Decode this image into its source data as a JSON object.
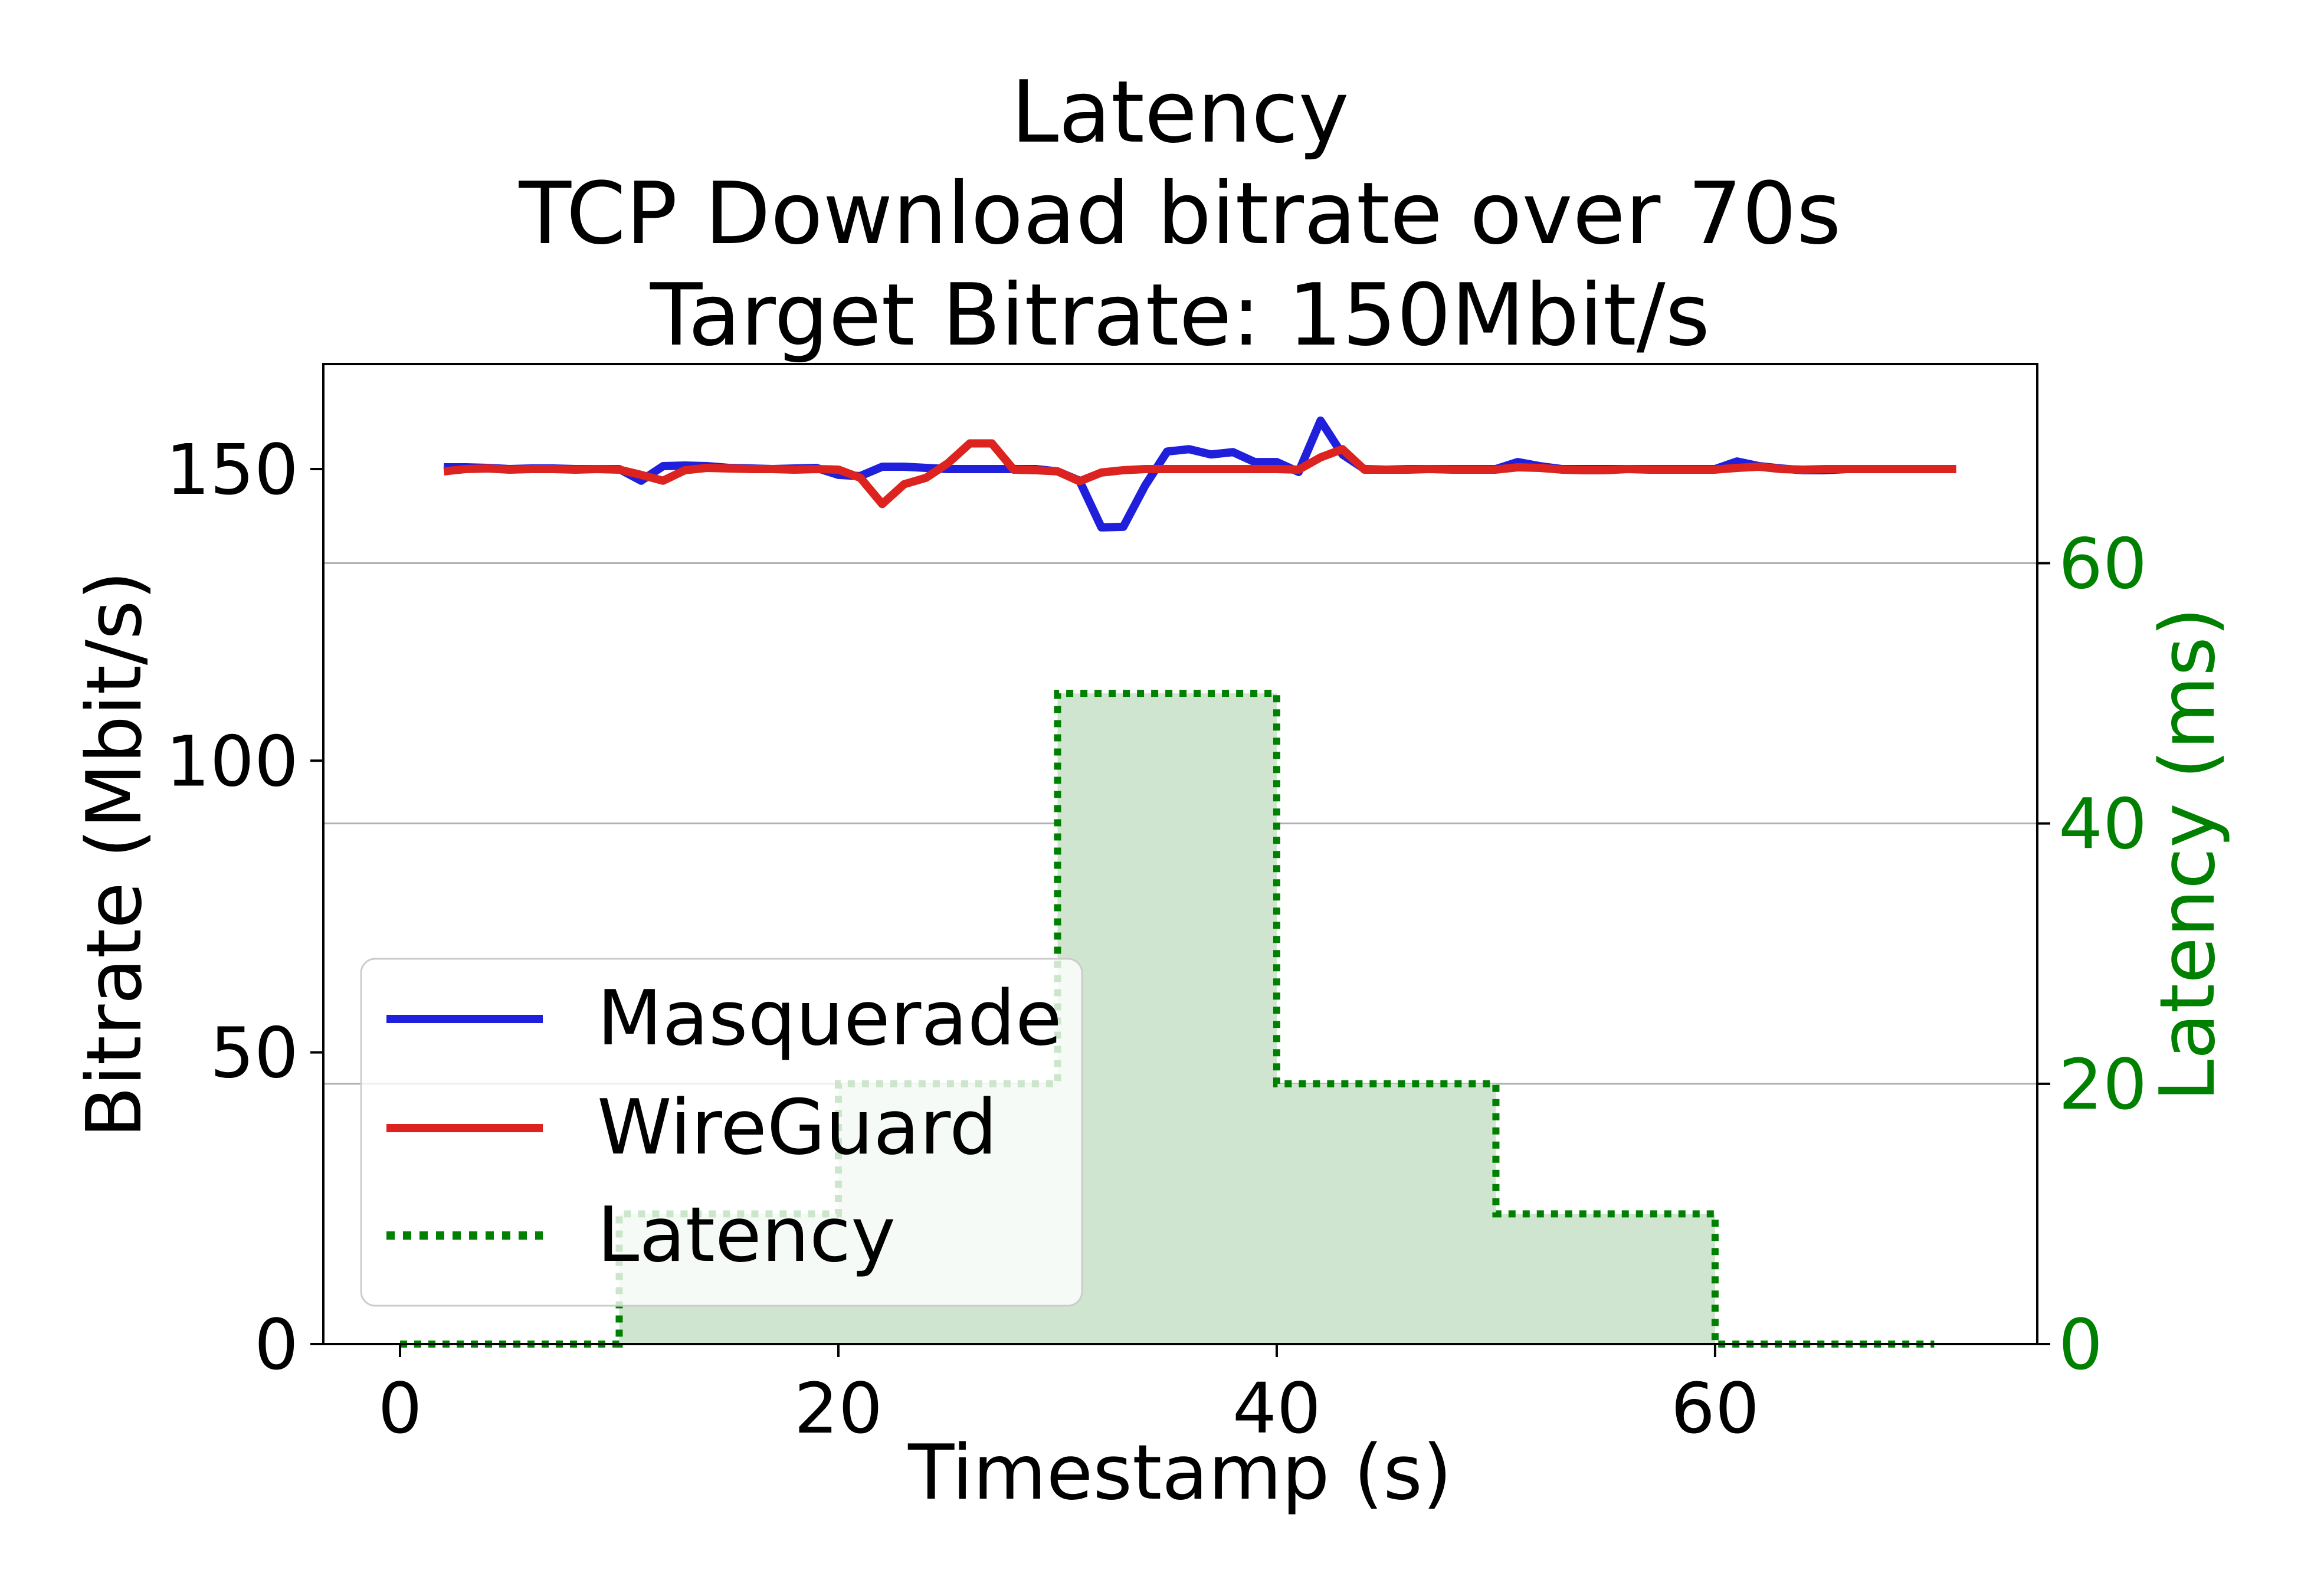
{
  "chart_data": {
    "type": "line",
    "title_lines": [
      "Latency",
      "TCP Download bitrate over 70s",
      "Target Bitrate: 150Mbit/s"
    ],
    "xlabel": "Timestamp (s)",
    "ylabel": "Bitrate (Mbit/s)",
    "y2label": "Latency (ms)",
    "xlim": [
      -3.5,
      74.7
    ],
    "ylim": [
      0,
      168
    ],
    "y2lim": [
      0,
      75.3
    ],
    "xticks": [
      0,
      20,
      40,
      60
    ],
    "yticks": [
      0,
      50,
      100,
      150
    ],
    "y2ticks": [
      0,
      20,
      40,
      60
    ],
    "grid": "right-axis horizontal lines",
    "legend_position": "lower-left",
    "series": [
      {
        "name": "Masquerade",
        "axis": "left",
        "color": "#1f1fdc",
        "style": "solid",
        "x": [
          2,
          3,
          4,
          5,
          6,
          7,
          8,
          9,
          10,
          11,
          12,
          13,
          14,
          15,
          16,
          17,
          18,
          19,
          20,
          21,
          22,
          23,
          24,
          25,
          26,
          27,
          28,
          29,
          30,
          31,
          32,
          33,
          34,
          35,
          36,
          37,
          38,
          39,
          40,
          41,
          42,
          43,
          44,
          45,
          46,
          47,
          48,
          49,
          50,
          51,
          52,
          53,
          54,
          55,
          56,
          57,
          58,
          59,
          60,
          61,
          62,
          63,
          64,
          65,
          66,
          67,
          68,
          69,
          70,
          71
        ],
        "values": [
          150.3,
          150.3,
          150.2,
          150.0,
          150.1,
          150.1,
          150.0,
          150.0,
          150.0,
          148.0,
          150.5,
          150.6,
          150.5,
          150.2,
          150.1,
          150.0,
          150.1,
          150.2,
          149.0,
          148.8,
          150.4,
          150.4,
          150.2,
          150.0,
          150.0,
          150.0,
          150.0,
          150.0,
          149.6,
          148.0,
          140.0,
          140.1,
          147.2,
          153.0,
          153.4,
          152.5,
          152.9,
          151.2,
          151.2,
          149.5,
          158.3,
          152.5,
          150.0,
          149.9,
          150.0,
          150.0,
          150.0,
          150.0,
          150.0,
          151.2,
          150.5,
          150.0,
          150.0,
          150.0,
          150.0,
          150.0,
          150.0,
          150.0,
          150.0,
          151.3,
          150.5,
          150.1,
          149.8,
          149.8,
          150.0,
          150.0,
          150.0,
          150.0,
          150.0,
          150.0
        ]
      },
      {
        "name": "WireGuard",
        "axis": "left",
        "color": "#dc231f",
        "style": "solid",
        "x": [
          2,
          3,
          4,
          5,
          6,
          7,
          8,
          9,
          10,
          11,
          12,
          13,
          14,
          15,
          16,
          17,
          18,
          19,
          20,
          21,
          22,
          23,
          24,
          25,
          26,
          27,
          28,
          29,
          30,
          31,
          32,
          33,
          34,
          35,
          36,
          37,
          38,
          39,
          40,
          41,
          42,
          43,
          44,
          45,
          46,
          47,
          48,
          49,
          50,
          51,
          52,
          53,
          54,
          55,
          56,
          57,
          58,
          59,
          60,
          61,
          62,
          63,
          64,
          65,
          66,
          67,
          68,
          69,
          70,
          71
        ],
        "values": [
          149.6,
          150.0,
          150.1,
          149.9,
          150.0,
          150.0,
          149.9,
          150.0,
          149.9,
          149.0,
          148.0,
          149.8,
          150.2,
          150.1,
          150.0,
          150.0,
          149.9,
          150.0,
          149.9,
          148.5,
          144.0,
          147.4,
          148.5,
          151.0,
          154.4,
          154.4,
          149.9,
          149.8,
          149.6,
          147.9,
          149.4,
          149.8,
          150.0,
          150.0,
          150.0,
          150.0,
          150.0,
          150.0,
          150.0,
          149.9,
          152.0,
          153.4,
          149.9,
          149.9,
          149.9,
          150.0,
          149.9,
          149.9,
          149.9,
          150.3,
          150.2,
          149.9,
          149.8,
          149.8,
          150.0,
          149.9,
          149.9,
          149.9,
          149.9,
          150.2,
          150.4,
          150.0,
          149.9,
          150.0,
          150.0,
          150.0,
          150.0,
          150.0,
          150.0,
          150.0
        ]
      },
      {
        "name": "Latency",
        "axis": "right",
        "color": "#008000",
        "style": "dotted-step-filled",
        "fill_color": "#cfe5cf",
        "x": [
          0,
          10,
          10,
          20,
          20,
          30,
          30,
          40,
          40,
          50,
          50,
          60,
          60,
          70
        ],
        "values": [
          0,
          0,
          10,
          10,
          20,
          20,
          50,
          50,
          20,
          20,
          10,
          10,
          0,
          0
        ]
      }
    ]
  }
}
